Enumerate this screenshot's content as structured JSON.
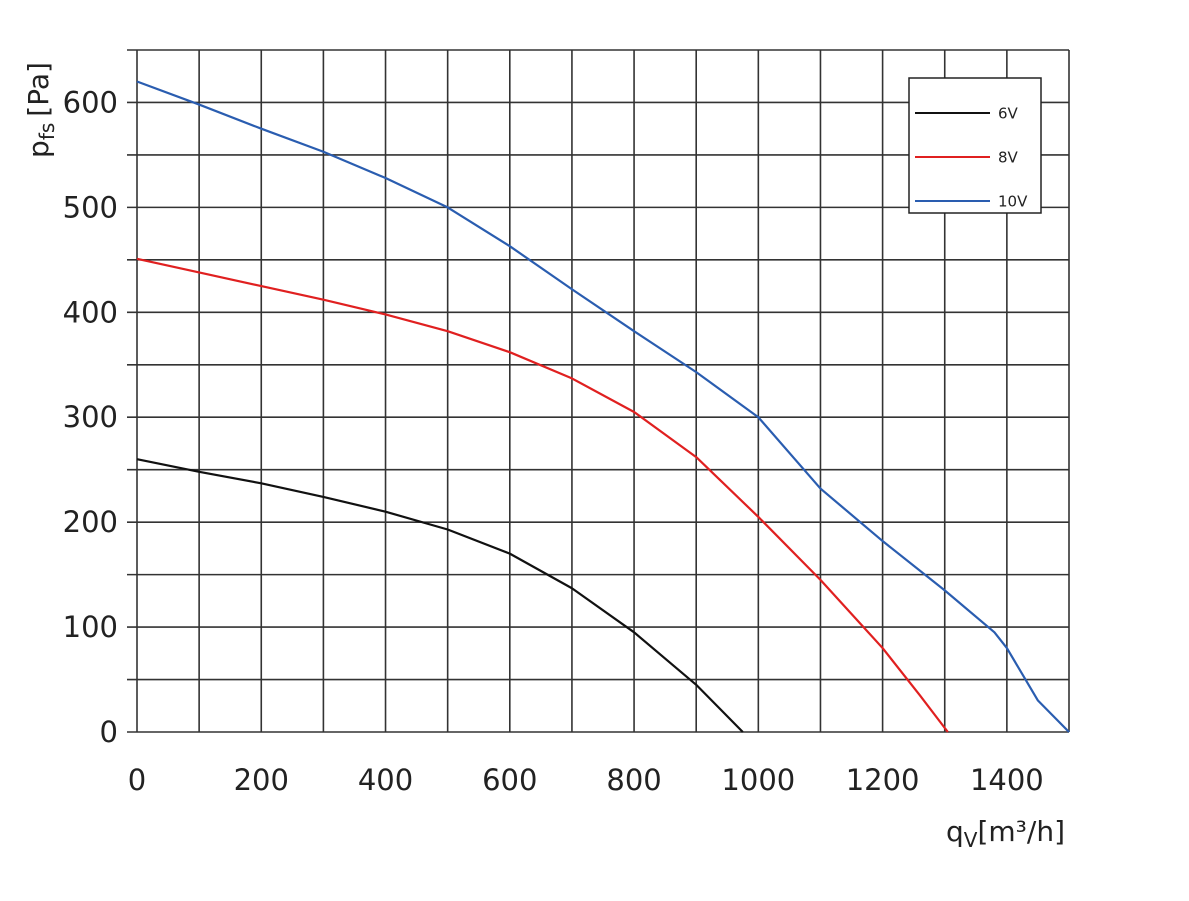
{
  "chart_data": {
    "type": "line",
    "y_label": {
      "symbol": "p",
      "sub": "fs",
      "unit": "[Pa]"
    },
    "x_label": {
      "symbol": "q",
      "sub": "V",
      "unit": "[m³/h]"
    },
    "xlim": [
      0,
      1500
    ],
    "ylim": [
      0,
      650
    ],
    "xticks": [
      0,
      200,
      400,
      600,
      800,
      1000,
      1200,
      1400
    ],
    "yticks": [
      0,
      100,
      200,
      300,
      400,
      500,
      600
    ],
    "x_minor_ticks": [
      100,
      300,
      500,
      700,
      900,
      1100,
      1300,
      1500
    ],
    "y_minor_ticks": [
      50,
      150,
      250,
      350,
      450,
      550,
      650
    ],
    "grid": true,
    "legend": "upper right",
    "series": [
      {
        "name": "6V",
        "color": "#111111",
        "x": [
          0,
          100,
          200,
          300,
          400,
          500,
          600,
          700,
          800,
          900,
          975
        ],
        "values": [
          260,
          248,
          237,
          224,
          210,
          193,
          170,
          137,
          95,
          45,
          0
        ]
      },
      {
        "name": "8V",
        "color": "#e02020",
        "x": [
          0,
          100,
          200,
          300,
          400,
          500,
          600,
          700,
          800,
          900,
          1000,
          1100,
          1200,
          1260,
          1305
        ],
        "values": [
          451,
          438,
          425,
          412,
          398,
          382,
          362,
          337,
          305,
          262,
          205,
          145,
          80,
          35,
          0
        ]
      },
      {
        "name": "10V",
        "color": "#2a5db0",
        "x": [
          0,
          100,
          200,
          300,
          400,
          500,
          600,
          700,
          800,
          900,
          1000,
          1100,
          1200,
          1300,
          1380,
          1400,
          1450,
          1500
        ],
        "values": [
          620,
          598,
          575,
          553,
          528,
          500,
          463,
          422,
          382,
          343,
          300,
          232,
          182,
          135,
          95,
          80,
          30,
          0
        ]
      }
    ]
  }
}
